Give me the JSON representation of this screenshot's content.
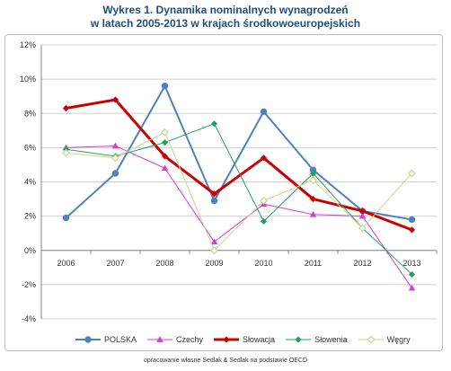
{
  "title_line1": "Wykres 1. Dynamika nominalnych wynagrodzeń",
  "title_line2": "w latach 2005-2013 w krajach środkowoeuropejskich",
  "source_text": "opracowanie własne Sedlak & Sedlak na podstawie OECD",
  "chart_data": {
    "type": "line",
    "x": [
      "2006",
      "2007",
      "2008",
      "2009",
      "2010",
      "2011",
      "2012",
      "2013"
    ],
    "ylim": [
      -4,
      12
    ],
    "yticks": [
      -4,
      -2,
      0,
      2,
      4,
      6,
      8,
      10,
      12
    ],
    "ytick_labels": [
      "-4%",
      "-2%",
      "0%",
      "2%",
      "4%",
      "6%",
      "8%",
      "10%",
      "12%"
    ],
    "grid": "horizontal",
    "legend_position": "bottom",
    "series": [
      {
        "name": "POLSKA",
        "color": "#4f81bd",
        "marker": "circle",
        "width": 2,
        "values": [
          1.9,
          4.5,
          9.6,
          2.9,
          8.1,
          4.7,
          2.3,
          1.8
        ]
      },
      {
        "name": "Czechy",
        "color": "#d63cd6",
        "marker": "triangle",
        "width": 1,
        "values": [
          6.0,
          6.1,
          4.8,
          0.5,
          2.7,
          2.1,
          2.0,
          -2.2
        ]
      },
      {
        "name": "Słowacja",
        "color": "#cc0000",
        "marker": "diamond",
        "width": 3,
        "values": [
          8.3,
          8.8,
          5.5,
          3.3,
          5.4,
          3.0,
          2.3,
          1.2
        ]
      },
      {
        "name": "Słowenia",
        "color": "#22a060",
        "marker": "diamond",
        "width": 1,
        "values": [
          5.9,
          5.5,
          6.3,
          7.4,
          1.7,
          4.5,
          1.3,
          -1.4
        ]
      },
      {
        "name": "Węgry",
        "color": "#c8d68a",
        "marker": "diamond-open",
        "width": 1,
        "values": [
          5.7,
          5.4,
          6.9,
          0.0,
          2.9,
          4.1,
          1.3,
          4.5
        ]
      }
    ]
  }
}
